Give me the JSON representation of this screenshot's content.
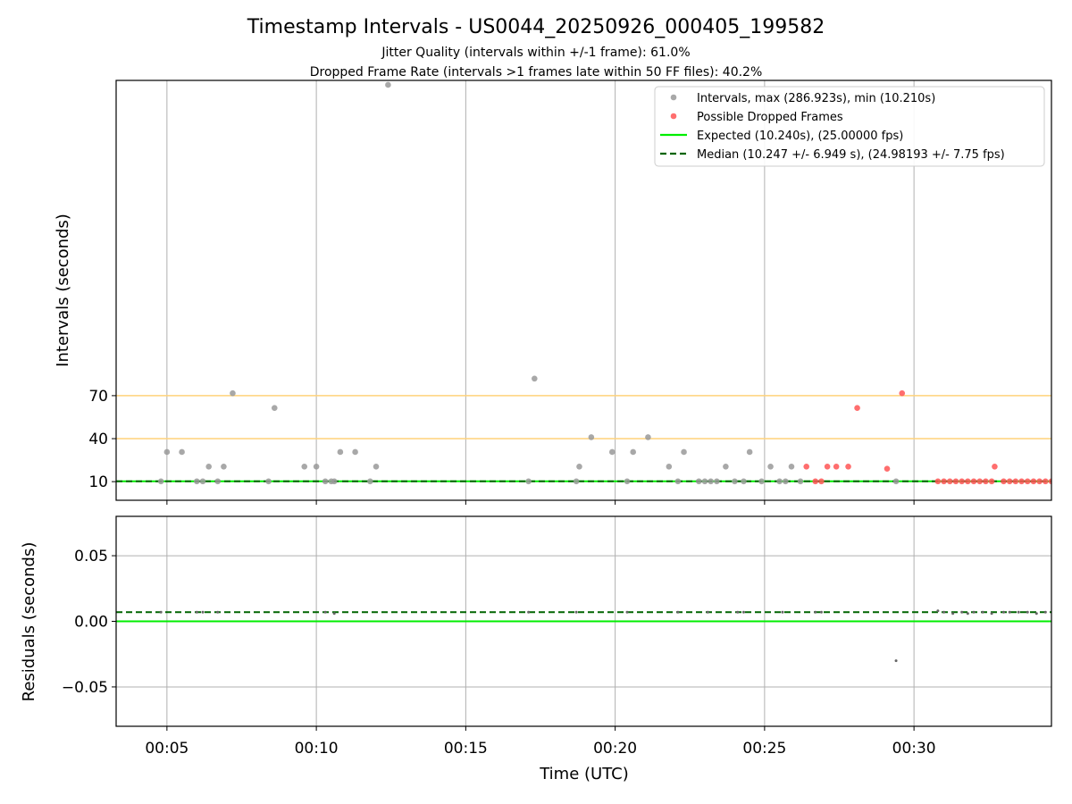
{
  "chart_data": [
    {
      "type": "scatter",
      "title": "Timestamp Intervals - US0044_20250926_000405_199582",
      "subtitle_lines": [
        "Jitter Quality (intervals within +/-1 frame): 61.0%",
        "Dropped Frame Rate (intervals >1 frames late within 50 FF files): 40.2%"
      ],
      "xlabel": "",
      "ylabel": "Intervals (seconds)",
      "xlim_minutes": [
        3.3,
        34.6
      ],
      "ylim": [
        -3,
        290
      ],
      "yticks": [
        10,
        40,
        70
      ],
      "ytick_labels": [
        "10",
        "40",
        "70"
      ],
      "grid": "vertical",
      "legend_position": "top-right",
      "reference_lines": [
        {
          "name": "Expected",
          "y": 10.24,
          "color": "#00ee00",
          "style": "solid"
        },
        {
          "name": "Median",
          "y": 10.247,
          "color": "#006400",
          "style": "dashed"
        },
        {
          "name": "threshold-40",
          "y": 40,
          "color": "#ffd27a",
          "style": "solid"
        },
        {
          "name": "threshold-70",
          "y": 70,
          "color": "#ffd27a",
          "style": "solid"
        }
      ],
      "series": [
        {
          "name": "Intervals, max (286.923s), min (10.210s)",
          "color": "#999999",
          "points": [
            [
              4.8,
              10.2
            ],
            [
              5.0,
              30.7
            ],
            [
              5.5,
              30.7
            ],
            [
              6.0,
              10.2
            ],
            [
              6.2,
              10.2
            ],
            [
              6.4,
              20.5
            ],
            [
              6.7,
              10.2
            ],
            [
              6.9,
              20.5
            ],
            [
              7.2,
              71.7
            ],
            [
              8.4,
              10.2
            ],
            [
              8.6,
              61.4
            ],
            [
              9.6,
              20.5
            ],
            [
              10.0,
              20.5
            ],
            [
              10.3,
              10.2
            ],
            [
              10.5,
              10.2
            ],
            [
              10.6,
              10.2
            ],
            [
              10.8,
              30.7
            ],
            [
              11.3,
              30.7
            ],
            [
              11.8,
              10.2
            ],
            [
              12.0,
              20.5
            ],
            [
              12.4,
              286.9
            ],
            [
              17.1,
              10.2
            ],
            [
              17.3,
              81.9
            ],
            [
              18.7,
              10.2
            ],
            [
              18.8,
              20.5
            ],
            [
              19.2,
              41.0
            ],
            [
              19.9,
              30.7
            ],
            [
              20.4,
              10.2
            ],
            [
              20.6,
              30.7
            ],
            [
              21.1,
              41.0
            ],
            [
              21.8,
              20.5
            ],
            [
              22.1,
              10.2
            ],
            [
              22.3,
              30.7
            ],
            [
              22.8,
              10.2
            ],
            [
              23.0,
              10.2
            ],
            [
              23.2,
              10.2
            ],
            [
              23.4,
              10.2
            ],
            [
              23.7,
              20.5
            ],
            [
              24.0,
              10.2
            ],
            [
              24.3,
              10.2
            ],
            [
              24.5,
              30.7
            ],
            [
              24.9,
              10.2
            ],
            [
              25.2,
              20.5
            ],
            [
              25.5,
              10.2
            ],
            [
              25.7,
              10.2
            ],
            [
              25.9,
              20.5
            ],
            [
              26.2,
              10.2
            ],
            [
              29.4,
              10.2
            ]
          ]
        },
        {
          "name": "Possible Dropped Frames",
          "color": "#ff5555",
          "points": [
            [
              26.4,
              20.5
            ],
            [
              26.7,
              10.2
            ],
            [
              26.9,
              10.2
            ],
            [
              27.1,
              20.5
            ],
            [
              27.4,
              20.5
            ],
            [
              27.8,
              20.5
            ],
            [
              28.1,
              61.4
            ],
            [
              29.1,
              19.0
            ],
            [
              29.6,
              71.7
            ],
            [
              30.8,
              10.2
            ],
            [
              31.0,
              10.2
            ],
            [
              31.2,
              10.2
            ],
            [
              31.4,
              10.2
            ],
            [
              31.6,
              10.2
            ],
            [
              31.8,
              10.2
            ],
            [
              32.0,
              10.2
            ],
            [
              32.2,
              10.2
            ],
            [
              32.4,
              10.2
            ],
            [
              32.6,
              10.2
            ],
            [
              32.7,
              20.5
            ],
            [
              33.0,
              10.2
            ],
            [
              33.2,
              10.2
            ],
            [
              33.4,
              10.2
            ],
            [
              33.6,
              10.2
            ],
            [
              33.8,
              10.2
            ],
            [
              34.0,
              10.2
            ],
            [
              34.2,
              10.2
            ],
            [
              34.4,
              10.2
            ],
            [
              34.6,
              10.2
            ]
          ]
        }
      ],
      "legend": [
        {
          "label": "Intervals, max (286.923s), min (10.210s)",
          "kind": "marker",
          "color": "#999999"
        },
        {
          "label": "Possible Dropped Frames",
          "kind": "marker",
          "color": "#ff5555"
        },
        {
          "label": "Expected (10.240s), (25.00000 fps)",
          "kind": "line",
          "color": "#00ee00"
        },
        {
          "label": "Median (10.247 +/- 6.949 s), (24.98193 +/- 7.75 fps)",
          "kind": "dashed",
          "color": "#006400"
        }
      ]
    },
    {
      "type": "scatter",
      "title": "",
      "xlabel": "Time (UTC)",
      "ylabel": "Residuals (seconds)",
      "xlim_minutes": [
        3.3,
        34.6
      ],
      "ylim": [
        -0.08,
        0.08
      ],
      "yticks": [
        0.05,
        0.0,
        -0.05
      ],
      "ytick_labels": [
        "0.05",
        "0.00",
        "−0.05"
      ],
      "xticks_minutes": [
        5,
        10,
        15,
        20,
        25,
        30
      ],
      "xtick_labels": [
        "00:05",
        "00:10",
        "00:15",
        "00:20",
        "00:25",
        "00:30"
      ],
      "grid": "both",
      "reference_lines": [
        {
          "name": "Expected",
          "y": 0.0,
          "color": "#00ee00",
          "style": "solid"
        },
        {
          "name": "Median",
          "y": 0.007,
          "color": "#006400",
          "style": "dashed"
        }
      ],
      "series": [
        {
          "name": "Residuals",
          "color": "#666666",
          "points": [
            [
              4.8,
              0.007
            ],
            [
              6.0,
              0.007
            ],
            [
              6.2,
              0.007
            ],
            [
              6.7,
              0.007
            ],
            [
              10.3,
              0.007
            ],
            [
              10.6,
              0.006
            ],
            [
              17.1,
              0.007
            ],
            [
              18.7,
              0.007
            ],
            [
              20.4,
              0.007
            ],
            [
              22.1,
              0.007
            ],
            [
              23.1,
              0.007
            ],
            [
              24.1,
              0.007
            ],
            [
              24.3,
              0.007
            ],
            [
              25.6,
              0.007
            ],
            [
              26.7,
              0.007
            ],
            [
              26.9,
              0.007
            ],
            [
              29.4,
              -0.03
            ],
            [
              30.8,
              0.008
            ],
            [
              31.0,
              0.007
            ],
            [
              31.3,
              0.006
            ],
            [
              31.6,
              0.007
            ],
            [
              31.8,
              0.006
            ],
            [
              32.0,
              0.007
            ],
            [
              32.3,
              0.007
            ],
            [
              32.6,
              0.006
            ],
            [
              33.0,
              0.007
            ],
            [
              33.2,
              0.007
            ],
            [
              33.5,
              0.007
            ],
            [
              33.8,
              0.007
            ],
            [
              34.1,
              0.006
            ],
            [
              34.4,
              0.007
            ]
          ]
        }
      ]
    }
  ]
}
